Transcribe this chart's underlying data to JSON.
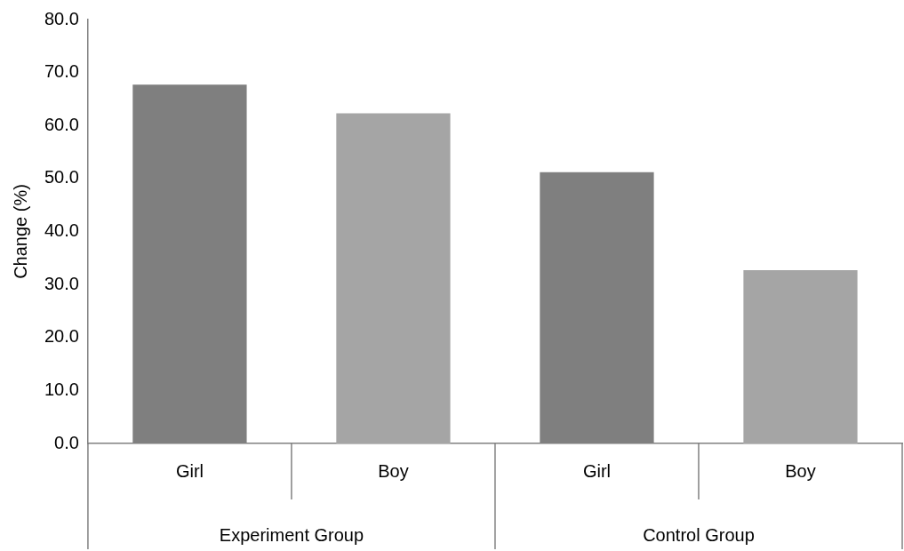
{
  "chart_data": {
    "type": "bar",
    "ylabel": "Change (%)",
    "categories": [
      "Girl",
      "Boy",
      "Girl",
      "Boy"
    ],
    "values": [
      67.7,
      62.3,
      51.2,
      32.7
    ],
    "colors": [
      "#7f7f7f",
      "#a5a5a5",
      "#7f7f7f",
      "#a5a5a5"
    ],
    "ylim": [
      0,
      80
    ],
    "yticks": [
      {
        "value": 0,
        "label": "0.0"
      },
      {
        "value": 10,
        "label": "10.0"
      },
      {
        "value": 20,
        "label": "20.0"
      },
      {
        "value": 30,
        "label": "30.0"
      },
      {
        "value": 40,
        "label": "40.0"
      },
      {
        "value": 50,
        "label": "50.0"
      },
      {
        "value": 60,
        "label": "60.0"
      },
      {
        "value": 70,
        "label": "70.0"
      },
      {
        "value": 80,
        "label": "80.0"
      }
    ],
    "annotations": [
      "Experiment Group",
      "Control Group"
    ],
    "grid": false,
    "legend": false
  }
}
